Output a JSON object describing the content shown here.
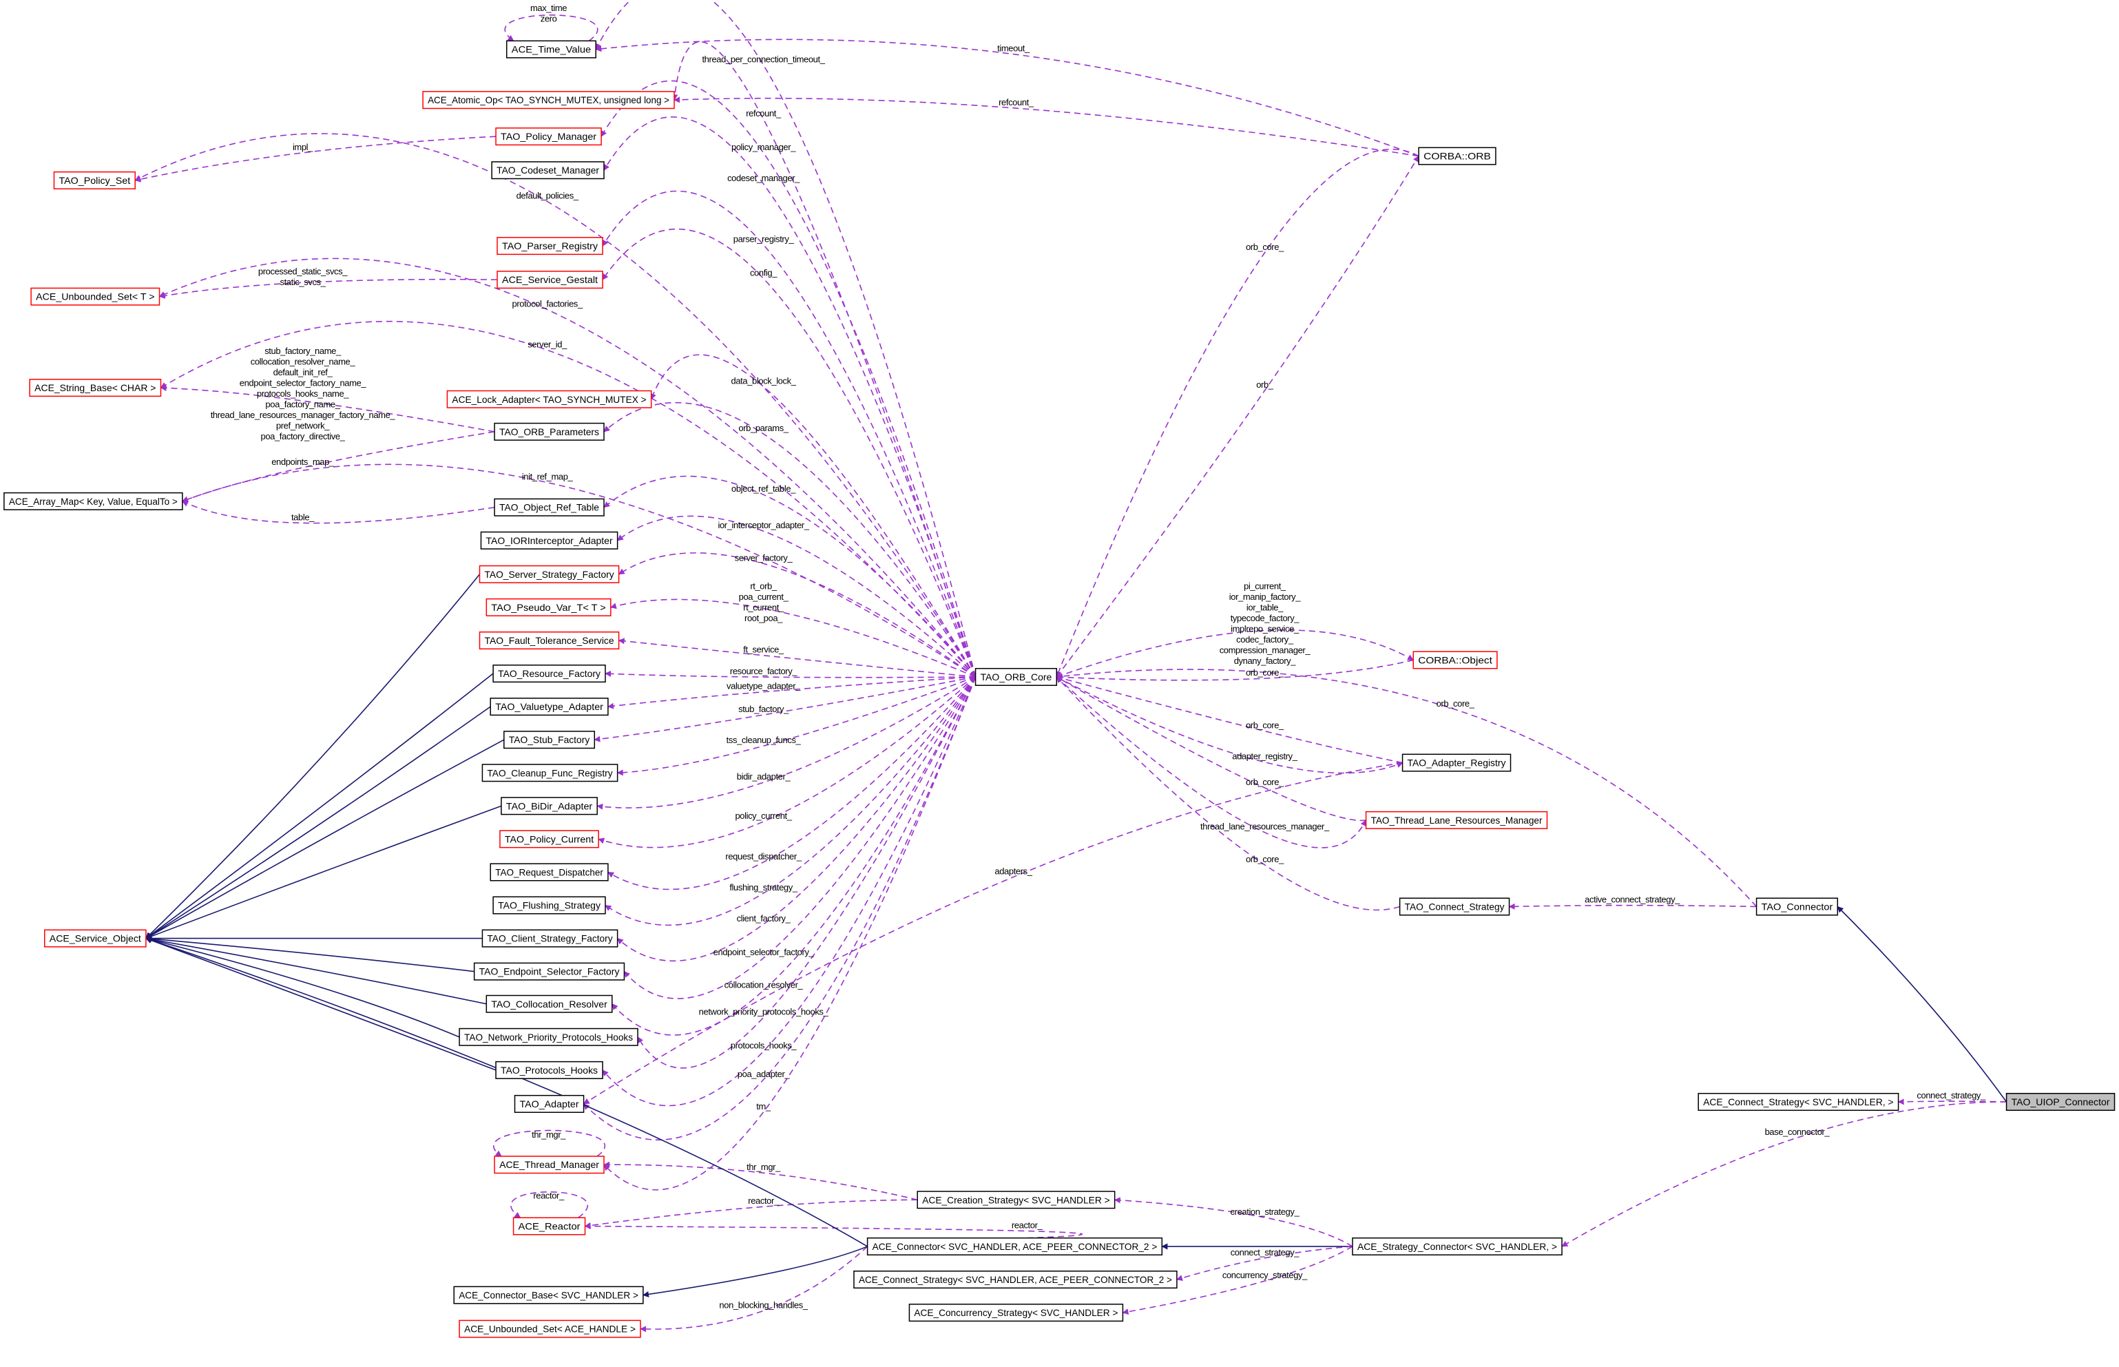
{
  "colors": {
    "composition_edge": "#9a32cd",
    "inheritance_edge": "#191970",
    "node_border_default": "#000000",
    "node_border_undocumented": "#ff0000",
    "focus_fill": "#bfbfbf"
  },
  "nodes": [
    {
      "id": "time_value",
      "label": "ACE_Time_Value",
      "border": "black"
    },
    {
      "id": "atomic_op",
      "label": "ACE_Atomic_Op< TAO_SYNCH_MUTEX, unsigned long >",
      "border": "red"
    },
    {
      "id": "policy_manager",
      "label": "TAO_Policy_Manager",
      "border": "red"
    },
    {
      "id": "codeset_manager",
      "label": "TAO_Codeset_Manager",
      "border": "black"
    },
    {
      "id": "policy_set",
      "label": "TAO_Policy_Set",
      "border": "red"
    },
    {
      "id": "parser_registry",
      "label": "TAO_Parser_Registry",
      "border": "red"
    },
    {
      "id": "service_gestalt",
      "label": "ACE_Service_Gestalt",
      "border": "red"
    },
    {
      "id": "unbounded_set_t",
      "label": "ACE_Unbounded_Set< T >",
      "border": "red"
    },
    {
      "id": "string_base",
      "label": "ACE_String_Base< CHAR >",
      "border": "red"
    },
    {
      "id": "lock_adapter",
      "label": "ACE_Lock_Adapter< TAO_SYNCH_MUTEX >",
      "border": "red"
    },
    {
      "id": "orb_parameters",
      "label": "TAO_ORB_Parameters",
      "border": "black"
    },
    {
      "id": "array_map",
      "label": "ACE_Array_Map< Key, Value, EqualTo >",
      "border": "black"
    },
    {
      "id": "object_ref_table",
      "label": "TAO_Object_Ref_Table",
      "border": "black"
    },
    {
      "id": "ior_interceptor",
      "label": "TAO_IORInterceptor_Adapter",
      "border": "black"
    },
    {
      "id": "server_strategy",
      "label": "TAO_Server_Strategy_Factory",
      "border": "red"
    },
    {
      "id": "pseudo_var",
      "label": "TAO_Pseudo_Var_T< T >",
      "border": "red"
    },
    {
      "id": "fault_tolerance",
      "label": "TAO_Fault_Tolerance_Service",
      "border": "red"
    },
    {
      "id": "resource_factory",
      "label": "TAO_Resource_Factory",
      "border": "black"
    },
    {
      "id": "valuetype_adapter",
      "label": "TAO_Valuetype_Adapter",
      "border": "black"
    },
    {
      "id": "stub_factory",
      "label": "TAO_Stub_Factory",
      "border": "black"
    },
    {
      "id": "cleanup_registry",
      "label": "TAO_Cleanup_Func_Registry",
      "border": "black"
    },
    {
      "id": "bidir_adapter",
      "label": "TAO_BiDir_Adapter",
      "border": "black"
    },
    {
      "id": "policy_current",
      "label": "TAO_Policy_Current",
      "border": "red"
    },
    {
      "id": "request_dispatcher",
      "label": "TAO_Request_Dispatcher",
      "border": "black"
    },
    {
      "id": "flushing_strategy",
      "label": "TAO_Flushing_Strategy",
      "border": "black"
    },
    {
      "id": "client_strategy",
      "label": "TAO_Client_Strategy_Factory",
      "border": "black"
    },
    {
      "id": "endpoint_selector",
      "label": "TAO_Endpoint_Selector_Factory",
      "border": "black"
    },
    {
      "id": "collocation_resolver",
      "label": "TAO_Collocation_Resolver",
      "border": "black"
    },
    {
      "id": "network_priority",
      "label": "TAO_Network_Priority_Protocols_Hooks",
      "border": "black"
    },
    {
      "id": "protocols_hooks",
      "label": "TAO_Protocols_Hooks",
      "border": "black"
    },
    {
      "id": "tao_adapter",
      "label": "TAO_Adapter",
      "border": "black"
    },
    {
      "id": "thread_manager",
      "label": "ACE_Thread_Manager",
      "border": "red"
    },
    {
      "id": "reactor",
      "label": "ACE_Reactor",
      "border": "red"
    },
    {
      "id": "connector_base",
      "label": "ACE_Connector_Base< SVC_HANDLER >",
      "border": "black"
    },
    {
      "id": "unbounded_set_handle",
      "label": "ACE_Unbounded_Set< ACE_HANDLE >",
      "border": "red"
    },
    {
      "id": "service_object",
      "label": "ACE_Service_Object",
      "border": "red"
    },
    {
      "id": "orb_core",
      "label": "TAO_ORB_Core",
      "border": "black"
    },
    {
      "id": "corba_orb",
      "label": "CORBA::ORB",
      "border": "black"
    },
    {
      "id": "corba_object",
      "label": "CORBA::Object",
      "border": "red"
    },
    {
      "id": "adapter_registry",
      "label": "TAO_Adapter_Registry",
      "border": "black"
    },
    {
      "id": "thread_lane",
      "label": "TAO_Thread_Lane_Resources_Manager",
      "border": "red"
    },
    {
      "id": "tao_connect_strategy",
      "label": "TAO_Connect_Strategy",
      "border": "black"
    },
    {
      "id": "tao_connector",
      "label": "TAO_Connector",
      "border": "black"
    },
    {
      "id": "uiop_connector",
      "label": "TAO_UIOP_Connector",
      "border": "black",
      "focus": true
    },
    {
      "id": "ace_connect_strategy_short",
      "label": "ACE_Connect_Strategy< SVC_HANDLER, >",
      "border": "black"
    },
    {
      "id": "creation_strategy",
      "label": "ACE_Creation_Strategy< SVC_HANDLER >",
      "border": "black"
    },
    {
      "id": "ace_connector",
      "label": "ACE_Connector< SVC_HANDLER, ACE_PEER_CONNECTOR_2 >",
      "border": "black"
    },
    {
      "id": "strategy_connector",
      "label": "ACE_Strategy_Connector< SVC_HANDLER, >",
      "border": "black"
    },
    {
      "id": "ace_connect_strategy_full",
      "label": "ACE_Connect_Strategy< SVC_HANDLER, ACE_PEER_CONNECTOR_2 >",
      "border": "black"
    },
    {
      "id": "concurrency_strategy",
      "label": "ACE_Concurrency_Strategy< SVC_HANDLER >",
      "border": "black"
    }
  ],
  "edges": [
    {
      "from": "time_value",
      "to": "time_value",
      "type": "composition",
      "labels": [
        "max_time",
        "zero"
      ]
    },
    {
      "from": "orb_core",
      "to": "time_value",
      "type": "composition",
      "labels": [
        "thread_per_connection_timeout_"
      ]
    },
    {
      "from": "corba_orb",
      "to": "time_value",
      "type": "composition",
      "labels": [
        "timeout_"
      ]
    },
    {
      "from": "corba_orb",
      "to": "atomic_op",
      "type": "composition",
      "labels": [
        "refcount_"
      ]
    },
    {
      "from": "orb_core",
      "to": "atomic_op",
      "type": "composition",
      "labels": [
        "refcount_"
      ]
    },
    {
      "from": "orb_core",
      "to": "policy_manager",
      "type": "composition",
      "labels": [
        "policy_manager_"
      ]
    },
    {
      "from": "policy_manager",
      "to": "policy_set",
      "type": "composition",
      "labels": [
        "impl_"
      ]
    },
    {
      "from": "orb_core",
      "to": "codeset_manager",
      "type": "composition",
      "labels": [
        "codeset_manager_"
      ]
    },
    {
      "from": "orb_core",
      "to": "policy_set",
      "type": "composition",
      "labels": [
        "default_policies_"
      ]
    },
    {
      "from": "orb_core",
      "to": "parser_registry",
      "type": "composition",
      "labels": [
        "parser_registry_"
      ]
    },
    {
      "from": "orb_core",
      "to": "service_gestalt",
      "type": "composition",
      "labels": [
        "config_"
      ]
    },
    {
      "from": "service_gestalt",
      "to": "unbounded_set_t",
      "type": "composition",
      "labels": [
        "processed_static_svcs_",
        "static_svcs_"
      ]
    },
    {
      "from": "orb_core",
      "to": "unbounded_set_t",
      "type": "composition",
      "labels": [
        "protocol_factories_"
      ]
    },
    {
      "from": "orb_core",
      "to": "string_base",
      "type": "composition",
      "labels": [
        "server_id_"
      ]
    },
    {
      "from": "orb_parameters",
      "to": "string_base",
      "type": "composition",
      "labels": [
        "stub_factory_name_",
        "collocation_resolver_name_",
        "default_init_ref_",
        "endpoint_selector_factory_name_",
        "protocols_hooks_name_",
        "poa_factory_name_",
        "thread_lane_resources_manager_factory_name_",
        "pref_network_",
        "poa_factory_directive_"
      ]
    },
    {
      "from": "orb_core",
      "to": "lock_adapter",
      "type": "composition",
      "labels": [
        "data_block_lock_"
      ]
    },
    {
      "from": "orb_core",
      "to": "orb_parameters",
      "type": "composition",
      "labels": [
        "orb_params_"
      ]
    },
    {
      "from": "orb_parameters",
      "to": "array_map",
      "type": "composition",
      "labels": [
        "endpoints_map_"
      ]
    },
    {
      "from": "orb_core",
      "to": "array_map",
      "type": "composition",
      "labels": [
        "init_ref_map_"
      ]
    },
    {
      "from": "orb_core",
      "to": "object_ref_table",
      "type": "composition",
      "labels": [
        "object_ref_table_"
      ]
    },
    {
      "from": "object_ref_table",
      "to": "array_map",
      "type": "composition",
      "labels": [
        "table_"
      ]
    },
    {
      "from": "orb_core",
      "to": "ior_interceptor",
      "type": "composition",
      "labels": [
        "ior_interceptor_adapter_"
      ]
    },
    {
      "from": "orb_core",
      "to": "server_strategy",
      "type": "composition",
      "labels": [
        "server_factory_"
      ]
    },
    {
      "from": "orb_core",
      "to": "pseudo_var",
      "type": "composition",
      "labels": [
        "rt_orb_",
        "poa_current_",
        "rt_current_",
        "root_poa_"
      ]
    },
    {
      "from": "orb_core",
      "to": "fault_tolerance",
      "type": "composition",
      "labels": [
        "ft_service_"
      ]
    },
    {
      "from": "orb_core",
      "to": "resource_factory",
      "type": "composition",
      "labels": [
        "resource_factory_"
      ]
    },
    {
      "from": "orb_core",
      "to": "valuetype_adapter",
      "type": "composition",
      "labels": [
        "valuetype_adapter_"
      ]
    },
    {
      "from": "orb_core",
      "to": "stub_factory",
      "type": "composition",
      "labels": [
        "stub_factory_"
      ]
    },
    {
      "from": "orb_core",
      "to": "cleanup_registry",
      "type": "composition",
      "labels": [
        "tss_cleanup_funcs_"
      ]
    },
    {
      "from": "orb_core",
      "to": "bidir_adapter",
      "type": "composition",
      "labels": [
        "bidir_adapter_"
      ]
    },
    {
      "from": "orb_core",
      "to": "policy_current",
      "type": "composition",
      "labels": [
        "policy_current_"
      ]
    },
    {
      "from": "orb_core",
      "to": "request_dispatcher",
      "type": "composition",
      "labels": [
        "request_dispatcher_"
      ]
    },
    {
      "from": "orb_core",
      "to": "flushing_strategy",
      "type": "composition",
      "labels": [
        "flushing_strategy_"
      ]
    },
    {
      "from": "orb_core",
      "to": "client_strategy",
      "type": "composition",
      "labels": [
        "client_factory_"
      ]
    },
    {
      "from": "orb_core",
      "to": "endpoint_selector",
      "type": "composition",
      "labels": [
        "endpoint_selector_factory_"
      ]
    },
    {
      "from": "orb_core",
      "to": "collocation_resolver",
      "type": "composition",
      "labels": [
        "collocation_resolver_"
      ]
    },
    {
      "from": "orb_core",
      "to": "network_priority",
      "type": "composition",
      "labels": [
        "network_priority_protocols_hooks_"
      ]
    },
    {
      "from": "orb_core",
      "to": "protocols_hooks",
      "type": "composition",
      "labels": [
        "protocols_hooks_"
      ]
    },
    {
      "from": "orb_core",
      "to": "tao_adapter",
      "type": "composition",
      "labels": [
        "poa_adapter_"
      ]
    },
    {
      "from": "adapter_registry",
      "to": "tao_adapter",
      "type": "composition",
      "labels": [
        "adapters_"
      ]
    },
    {
      "from": "orb_core",
      "to": "thread_manager",
      "type": "composition",
      "labels": [
        "tm_"
      ]
    },
    {
      "from": "thread_manager",
      "to": "thread_manager",
      "type": "composition",
      "labels": [
        "thr_mgr_"
      ]
    },
    {
      "from": "creation_strategy",
      "to": "thread_manager",
      "type": "composition",
      "labels": [
        "thr_mgr_"
      ]
    },
    {
      "from": "reactor",
      "to": "reactor",
      "type": "composition",
      "labels": [
        "reactor_"
      ]
    },
    {
      "from": "creation_strategy",
      "to": "reactor",
      "type": "composition",
      "labels": [
        "reactor_"
      ]
    },
    {
      "from": "ace_connector",
      "to": "reactor",
      "type": "composition",
      "labels": [
        "reactor_"
      ]
    },
    {
      "from": "ace_connector",
      "to": "unbounded_set_handle",
      "type": "composition",
      "labels": [
        "non_blocking_handles_"
      ]
    },
    {
      "from": "corba_orb",
      "to": "orb_core",
      "type": "composition",
      "labels": [
        "orb_core_"
      ]
    },
    {
      "from": "orb_core",
      "to": "corba_orb",
      "type": "composition",
      "labels": [
        "orb_"
      ]
    },
    {
      "from": "orb_core",
      "to": "corba_object",
      "type": "composition",
      "labels": [
        "pi_current_",
        "ior_manip_factory_",
        "ior_table_",
        "typecode_factory_",
        "implrepo_service_",
        "codec_factory_",
        "compression_manager_",
        "dynany_factory_"
      ]
    },
    {
      "from": "corba_object",
      "to": "orb_core",
      "type": "composition",
      "labels": [
        "orb_core_"
      ]
    },
    {
      "from": "tao_connector",
      "to": "orb_core",
      "type": "composition",
      "labels": [
        "orb_core_"
      ]
    },
    {
      "from": "adapter_registry",
      "to": "orb_core",
      "type": "composition",
      "labels": [
        "orb_core_"
      ]
    },
    {
      "from": "orb_core",
      "to": "adapter_registry",
      "type": "composition",
      "labels": [
        "adapter_registry_"
      ]
    },
    {
      "from": "thread_lane",
      "to": "orb_core",
      "type": "composition",
      "labels": [
        "orb_core_"
      ]
    },
    {
      "from": "orb_core",
      "to": "thread_lane",
      "type": "composition",
      "labels": [
        "thread_lane_resources_manager_"
      ]
    },
    {
      "from": "tao_connect_strategy",
      "to": "orb_core",
      "type": "composition",
      "labels": [
        "orb_core_"
      ]
    },
    {
      "from": "tao_connector",
      "to": "tao_connect_strategy",
      "type": "composition",
      "labels": [
        "active_connect_strategy_"
      ]
    },
    {
      "from": "uiop_connector",
      "to": "tao_connector",
      "type": "inheritance",
      "labels": []
    },
    {
      "from": "uiop_connector",
      "to": "ace_connect_strategy_short",
      "type": "composition",
      "labels": [
        "connect_strategy_"
      ]
    },
    {
      "from": "uiop_connector",
      "to": "strategy_connector",
      "type": "composition",
      "labels": [
        "base_connector_"
      ]
    },
    {
      "from": "strategy_connector",
      "to": "creation_strategy",
      "type": "composition",
      "labels": [
        "creation_strategy_"
      ]
    },
    {
      "from": "strategy_connector",
      "to": "ace_connector",
      "type": "inheritance",
      "labels": []
    },
    {
      "from": "strategy_connector",
      "to": "ace_connect_strategy_full",
      "type": "composition",
      "labels": [
        "connect_strategy_"
      ]
    },
    {
      "from": "strategy_connector",
      "to": "concurrency_strategy",
      "type": "composition",
      "labels": [
        "concurrency_strategy_"
      ]
    },
    {
      "from": "ace_connector",
      "to": "connector_base",
      "type": "inheritance",
      "labels": []
    },
    {
      "from": "server_strategy",
      "to": "service_object",
      "type": "inheritance",
      "labels": []
    },
    {
      "from": "resource_factory",
      "to": "service_object",
      "type": "inheritance",
      "labels": []
    },
    {
      "from": "valuetype_adapter",
      "to": "service_object",
      "type": "inheritance",
      "labels": []
    },
    {
      "from": "stub_factory",
      "to": "service_object",
      "type": "inheritance",
      "labels": []
    },
    {
      "from": "bidir_adapter",
      "to": "service_object",
      "type": "inheritance",
      "labels": []
    },
    {
      "from": "client_strategy",
      "to": "service_object",
      "type": "inheritance",
      "labels": []
    },
    {
      "from": "endpoint_selector",
      "to": "service_object",
      "type": "inheritance",
      "labels": []
    },
    {
      "from": "collocation_resolver",
      "to": "service_object",
      "type": "inheritance",
      "labels": []
    },
    {
      "from": "network_priority",
      "to": "service_object",
      "type": "inheritance",
      "labels": []
    },
    {
      "from": "protocols_hooks",
      "to": "service_object",
      "type": "inheritance",
      "labels": []
    },
    {
      "from": "ace_connector",
      "to": "service_object",
      "type": "inheritance",
      "labels": []
    }
  ]
}
